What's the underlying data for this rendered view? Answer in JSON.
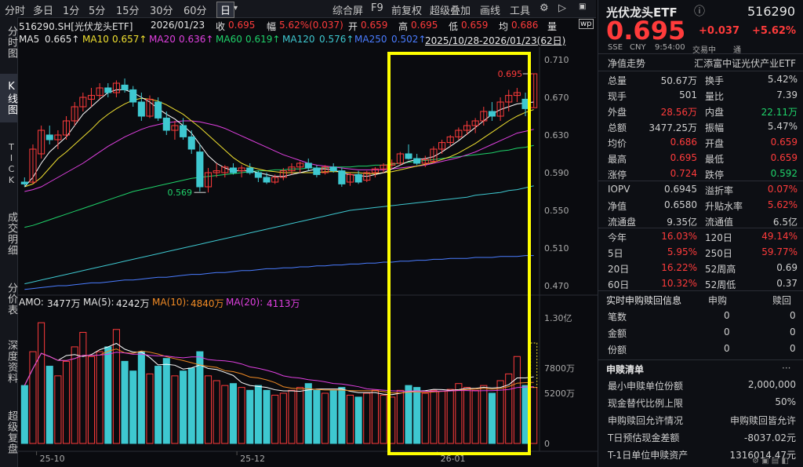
{
  "toolbar": {
    "periods": [
      "分时",
      "多日",
      "1分",
      "5分",
      "15分",
      "30分",
      "60分",
      "日"
    ],
    "selected": "日",
    "tools": [
      "综合屏",
      "F9",
      "前复权",
      "超级叠加",
      "画线",
      "工具"
    ]
  },
  "leftnav": [
    {
      "label": "分时图",
      "active": false
    },
    {
      "label": "K线图",
      "active": true
    },
    {
      "label": "TICK",
      "active": false
    },
    {
      "label": "成交明细",
      "active": false
    },
    {
      "label": "分价表",
      "active": false
    },
    {
      "label": "深度资料",
      "active": false
    },
    {
      "label": "超级复盘",
      "active": false
    }
  ],
  "info": {
    "code_name": "516290.SH[光伏龙头ETF]",
    "date": "2026/01/23",
    "close_label": "收",
    "close": "0.695",
    "chg_label": "幅",
    "chg": "5.62%(0.037)",
    "open_label": "开",
    "open": "0.659",
    "high_label": "高",
    "high": "0.695",
    "low_label": "低",
    "low": "0.659",
    "avg_label": "均",
    "avg": "0.686",
    "extra": "量"
  },
  "ma": {
    "ma5_label": "MA5",
    "ma5": "0.665↑",
    "ma10_label": "MA10",
    "ma10": "0.657↑",
    "ma20_label": "MA20",
    "ma20": "0.636↑",
    "ma60_label": "MA60",
    "ma60": "0.619↑",
    "ma120_label": "MA120",
    "ma120": "0.576↑",
    "ma250_label": "MA250",
    "ma250": "0.502↑",
    "range": "2025/10/28-2026/01/23(62日)"
  },
  "volume_info": {
    "amo_label": "AMO:",
    "amo": "3477万",
    "ma5_label": "MA(5):",
    "ma5": "4242万",
    "ma10_label": "MA(10):",
    "ma10": "4840万",
    "ma20_label": "MA(20):",
    "ma20": "4113万"
  },
  "x_labels": [
    "25-10",
    "25-12",
    "26-01"
  ],
  "price_axis": [
    "0.710",
    "0.670",
    "0.630",
    "0.590",
    "0.550",
    "0.510",
    "0.470"
  ],
  "vol_axis": [
    "1.30亿",
    "7800万",
    "5200万",
    "0"
  ],
  "annotations": {
    "high_mark": "0.695",
    "low_mark": "0.569"
  },
  "colors": {
    "up": "#ff3b3b",
    "down": "#3ec8d0",
    "highlight": "#ffff00",
    "ma5": "#ffffff",
    "ma10": "#f0e030",
    "ma20": "#e040e0",
    "ma60": "#1fd36a",
    "ma120": "#3ec8d0",
    "ma250": "#4a7cff"
  },
  "quote": {
    "name": "光伏龙头ETF",
    "code": "516290",
    "price": "0.695",
    "change": "+0.037",
    "pct": "+5.62%",
    "exch": "SSE",
    "currency": "CNY",
    "time": "9:54:00",
    "status": "交易中",
    "nav_label": "通",
    "rows1": [
      {
        "l": "净值走势",
        "r": "汇添富中证光伏产业ETF"
      }
    ],
    "grid": [
      [
        "总量",
        "50.67万",
        "换手",
        "5.42%"
      ],
      [
        "现手",
        "501",
        "量比",
        "7.39"
      ],
      [
        "外盘",
        "28.56万",
        "内盘",
        "22.11万"
      ],
      [
        "总额",
        "3477.25万",
        "振幅",
        "5.47%"
      ],
      [
        "均价",
        "0.686",
        "开盘",
        "0.659"
      ],
      [
        "最高",
        "0.695",
        "最低",
        "0.659"
      ],
      [
        "涨停",
        "0.724",
        "跌停",
        "0.592"
      ]
    ],
    "grid2": [
      [
        "IOPV",
        "0.6945",
        "溢折率",
        "0.07%"
      ],
      [
        "净值",
        "0.6580",
        "升贴水率",
        "5.62%"
      ],
      [
        "流通盘",
        "9.35亿",
        "流通值",
        "6.5亿"
      ]
    ],
    "perf": [
      [
        "今年",
        "16.03%",
        "120日",
        "49.14%"
      ],
      [
        "5日",
        "5.95%",
        "250日",
        "59.77%"
      ],
      [
        "20日",
        "16.22%",
        "52周高",
        "0.69"
      ],
      [
        "60日",
        "10.32%",
        "52周低",
        "0.37"
      ]
    ],
    "realtime": {
      "title": "实时申购赎回信息",
      "c1": "申购",
      "c2": "赎回",
      "rows": [
        [
          "笔数",
          "0",
          "0"
        ],
        [
          "金额",
          "0",
          "0"
        ],
        [
          "份额",
          "0",
          "0"
        ]
      ]
    },
    "list": {
      "title": "申赎清单",
      "rows": [
        [
          "最小申赎单位份额",
          "2,000,000"
        ],
        [
          "现金替代比例上限",
          "50%"
        ],
        [
          "申购赎回允许情况",
          "申购赎回皆允许"
        ],
        [
          "T日预估现金差额",
          "-8037.02元"
        ],
        [
          "T-1日单位申赎资产",
          "1316014.47元"
        ]
      ]
    }
  },
  "chart_data": {
    "type": "candlestick",
    "title": "516290.SH 光伏龙头ETF 日K",
    "ylim": [
      0.465,
      0.715
    ],
    "candles": [
      [
        0.58,
        0.585,
        0.575,
        0.578
      ],
      [
        0.58,
        0.62,
        0.578,
        0.615
      ],
      [
        0.61,
        0.64,
        0.605,
        0.635
      ],
      [
        0.63,
        0.64,
        0.62,
        0.625
      ],
      [
        0.625,
        0.635,
        0.615,
        0.63
      ],
      [
        0.63,
        0.65,
        0.625,
        0.645
      ],
      [
        0.645,
        0.665,
        0.64,
        0.66
      ],
      [
        0.66,
        0.675,
        0.655,
        0.67
      ],
      [
        0.668,
        0.68,
        0.66,
        0.672
      ],
      [
        0.672,
        0.685,
        0.668,
        0.68
      ],
      [
        0.68,
        0.685,
        0.67,
        0.675
      ],
      [
        0.675,
        0.688,
        0.67,
        0.685
      ],
      [
        0.683,
        0.69,
        0.675,
        0.678
      ],
      [
        0.678,
        0.682,
        0.66,
        0.665
      ],
      [
        0.665,
        0.675,
        0.645,
        0.65
      ],
      [
        0.65,
        0.672,
        0.648,
        0.668
      ],
      [
        0.665,
        0.67,
        0.645,
        0.648
      ],
      [
        0.648,
        0.655,
        0.63,
        0.635
      ],
      [
        0.635,
        0.645,
        0.625,
        0.64
      ],
      [
        0.64,
        0.648,
        0.625,
        0.628
      ],
      [
        0.628,
        0.635,
        0.61,
        0.615
      ],
      [
        0.612,
        0.62,
        0.57,
        0.575
      ],
      [
        0.575,
        0.595,
        0.569,
        0.59
      ],
      [
        0.59,
        0.6,
        0.585,
        0.592
      ],
      [
        0.59,
        0.598,
        0.585,
        0.596
      ],
      [
        0.595,
        0.6,
        0.588,
        0.59
      ],
      [
        0.592,
        0.598,
        0.585,
        0.595
      ],
      [
        0.595,
        0.6,
        0.588,
        0.59
      ],
      [
        0.59,
        0.592,
        0.58,
        0.585
      ],
      [
        0.585,
        0.59,
        0.578,
        0.58
      ],
      [
        0.58,
        0.588,
        0.578,
        0.585
      ],
      [
        0.585,
        0.595,
        0.582,
        0.592
      ],
      [
        0.592,
        0.6,
        0.588,
        0.596
      ],
      [
        0.596,
        0.602,
        0.59,
        0.6
      ],
      [
        0.6,
        0.605,
        0.592,
        0.595
      ],
      [
        0.595,
        0.598,
        0.585,
        0.588
      ],
      [
        0.59,
        0.598,
        0.588,
        0.596
      ],
      [
        0.596,
        0.6,
        0.59,
        0.592
      ],
      [
        0.592,
        0.595,
        0.575,
        0.578
      ],
      [
        0.58,
        0.59,
        0.576,
        0.588
      ],
      [
        0.588,
        0.592,
        0.578,
        0.58
      ],
      [
        0.582,
        0.592,
        0.58,
        0.59
      ],
      [
        0.59,
        0.596,
        0.585,
        0.594
      ],
      [
        0.594,
        0.6,
        0.59,
        0.598
      ],
      [
        0.598,
        0.604,
        0.594,
        0.6
      ],
      [
        0.6,
        0.612,
        0.598,
        0.61
      ],
      [
        0.61,
        0.62,
        0.604,
        0.605
      ],
      [
        0.605,
        0.61,
        0.598,
        0.6
      ],
      [
        0.6,
        0.608,
        0.596,
        0.604
      ],
      [
        0.602,
        0.618,
        0.6,
        0.615
      ],
      [
        0.615,
        0.625,
        0.61,
        0.622
      ],
      [
        0.622,
        0.63,
        0.618,
        0.628
      ],
      [
        0.628,
        0.638,
        0.625,
        0.635
      ],
      [
        0.635,
        0.645,
        0.63,
        0.64
      ],
      [
        0.64,
        0.648,
        0.632,
        0.645
      ],
      [
        0.645,
        0.66,
        0.64,
        0.655
      ],
      [
        0.655,
        0.665,
        0.645,
        0.65
      ],
      [
        0.65,
        0.67,
        0.645,
        0.665
      ],
      [
        0.665,
        0.678,
        0.655,
        0.672
      ],
      [
        0.672,
        0.68,
        0.665,
        0.675
      ],
      [
        0.668,
        0.675,
        0.65,
        0.658
      ],
      [
        0.659,
        0.695,
        0.659,
        0.695
      ]
    ],
    "volumes": [
      60,
      95,
      125,
      80,
      70,
      85,
      100,
      115,
      90,
      95,
      100,
      118,
      85,
      75,
      95,
      72,
      80,
      88,
      70,
      75,
      78,
      95,
      70,
      65,
      60,
      62,
      58,
      55,
      60,
      55,
      50,
      52,
      55,
      58,
      62,
      55,
      52,
      55,
      58,
      50,
      48,
      52,
      55,
      50,
      48,
      55,
      60,
      58,
      52,
      55,
      54,
      56,
      62,
      58,
      55,
      60,
      52,
      65,
      72,
      90,
      60,
      58
    ],
    "ma5": [
      0.575,
      0.585,
      0.6,
      0.612,
      0.62,
      0.628,
      0.64,
      0.652,
      0.66,
      0.668,
      0.675,
      0.678,
      0.678,
      0.675,
      0.67,
      0.665,
      0.658,
      0.652,
      0.647,
      0.64,
      0.632,
      0.62,
      0.608,
      0.6,
      0.595,
      0.592,
      0.592,
      0.592,
      0.59,
      0.588,
      0.586,
      0.586,
      0.588,
      0.59,
      0.592,
      0.594,
      0.594,
      0.593,
      0.59,
      0.588,
      0.587,
      0.586,
      0.588,
      0.59,
      0.594,
      0.598,
      0.602,
      0.604,
      0.605,
      0.607,
      0.612,
      0.618,
      0.624,
      0.631,
      0.638,
      0.645,
      0.652,
      0.657,
      0.66,
      0.663,
      0.664,
      0.665
    ],
    "ma10": [
      0.575,
      0.578,
      0.585,
      0.595,
      0.605,
      0.612,
      0.62,
      0.628,
      0.636,
      0.645,
      0.652,
      0.658,
      0.663,
      0.667,
      0.669,
      0.668,
      0.666,
      0.662,
      0.657,
      0.652,
      0.645,
      0.638,
      0.63,
      0.622,
      0.614,
      0.606,
      0.6,
      0.596,
      0.594,
      0.592,
      0.591,
      0.59,
      0.59,
      0.59,
      0.59,
      0.59,
      0.591,
      0.591,
      0.591,
      0.59,
      0.59,
      0.589,
      0.589,
      0.59,
      0.591,
      0.593,
      0.595,
      0.597,
      0.599,
      0.601,
      0.604,
      0.607,
      0.611,
      0.616,
      0.621,
      0.627,
      0.633,
      0.639,
      0.645,
      0.65,
      0.654,
      0.657
    ],
    "ma20": [
      0.57,
      0.572,
      0.575,
      0.58,
      0.585,
      0.59,
      0.595,
      0.6,
      0.606,
      0.612,
      0.618,
      0.623,
      0.628,
      0.632,
      0.636,
      0.639,
      0.641,
      0.643,
      0.644,
      0.645,
      0.645,
      0.644,
      0.642,
      0.64,
      0.637,
      0.633,
      0.629,
      0.625,
      0.621,
      0.617,
      0.613,
      0.609,
      0.606,
      0.603,
      0.6,
      0.598,
      0.597,
      0.596,
      0.595,
      0.594,
      0.593,
      0.593,
      0.593,
      0.593,
      0.594,
      0.595,
      0.596,
      0.597,
      0.598,
      0.6,
      0.602,
      0.604,
      0.606,
      0.609,
      0.612,
      0.616,
      0.62,
      0.624,
      0.628,
      0.632,
      0.634,
      0.636
    ],
    "ma60": [
      0.532,
      0.534,
      0.537,
      0.54,
      0.543,
      0.546,
      0.549,
      0.552,
      0.555,
      0.558,
      0.561,
      0.564,
      0.567,
      0.57,
      0.572,
      0.574,
      0.576,
      0.578,
      0.58,
      0.582,
      0.584,
      0.585,
      0.586,
      0.587,
      0.588,
      0.589,
      0.59,
      0.591,
      0.592,
      0.592,
      0.593,
      0.593,
      0.594,
      0.594,
      0.595,
      0.595,
      0.595,
      0.596,
      0.596,
      0.596,
      0.597,
      0.597,
      0.598,
      0.598,
      0.599,
      0.6,
      0.601,
      0.602,
      0.603,
      0.604,
      0.605,
      0.606,
      0.607,
      0.608,
      0.609,
      0.61,
      0.611,
      0.613,
      0.614,
      0.616,
      0.617,
      0.619
    ],
    "ma120": [
      0.472,
      0.474,
      0.476,
      0.478,
      0.48,
      0.482,
      0.484,
      0.486,
      0.488,
      0.49,
      0.492,
      0.494,
      0.496,
      0.498,
      0.5,
      0.502,
      0.504,
      0.506,
      0.508,
      0.51,
      0.512,
      0.514,
      0.516,
      0.518,
      0.52,
      0.522,
      0.524,
      0.526,
      0.528,
      0.53,
      0.532,
      0.534,
      0.536,
      0.538,
      0.54,
      0.542,
      0.544,
      0.546,
      0.548,
      0.55,
      0.551,
      0.552,
      0.553,
      0.554,
      0.555,
      0.556,
      0.557,
      0.558,
      0.559,
      0.56,
      0.561,
      0.562,
      0.563,
      0.564,
      0.566,
      0.567,
      0.568,
      0.569,
      0.571,
      0.572,
      0.574,
      0.576
    ],
    "ma250": [
      0.466,
      0.467,
      0.468,
      0.469,
      0.47,
      0.47,
      0.471,
      0.472,
      0.473,
      0.473,
      0.474,
      0.475,
      0.476,
      0.476,
      0.477,
      0.478,
      0.479,
      0.479,
      0.48,
      0.481,
      0.482,
      0.482,
      0.483,
      0.484,
      0.484,
      0.485,
      0.486,
      0.486,
      0.487,
      0.488,
      0.488,
      0.489,
      0.489,
      0.49,
      0.49,
      0.491,
      0.491,
      0.492,
      0.492,
      0.493,
      0.493,
      0.494,
      0.494,
      0.495,
      0.495,
      0.496,
      0.496,
      0.497,
      0.497,
      0.498,
      0.498,
      0.499,
      0.499,
      0.499,
      0.5,
      0.5,
      0.5,
      0.501,
      0.501,
      0.501,
      0.502,
      0.502
    ]
  }
}
